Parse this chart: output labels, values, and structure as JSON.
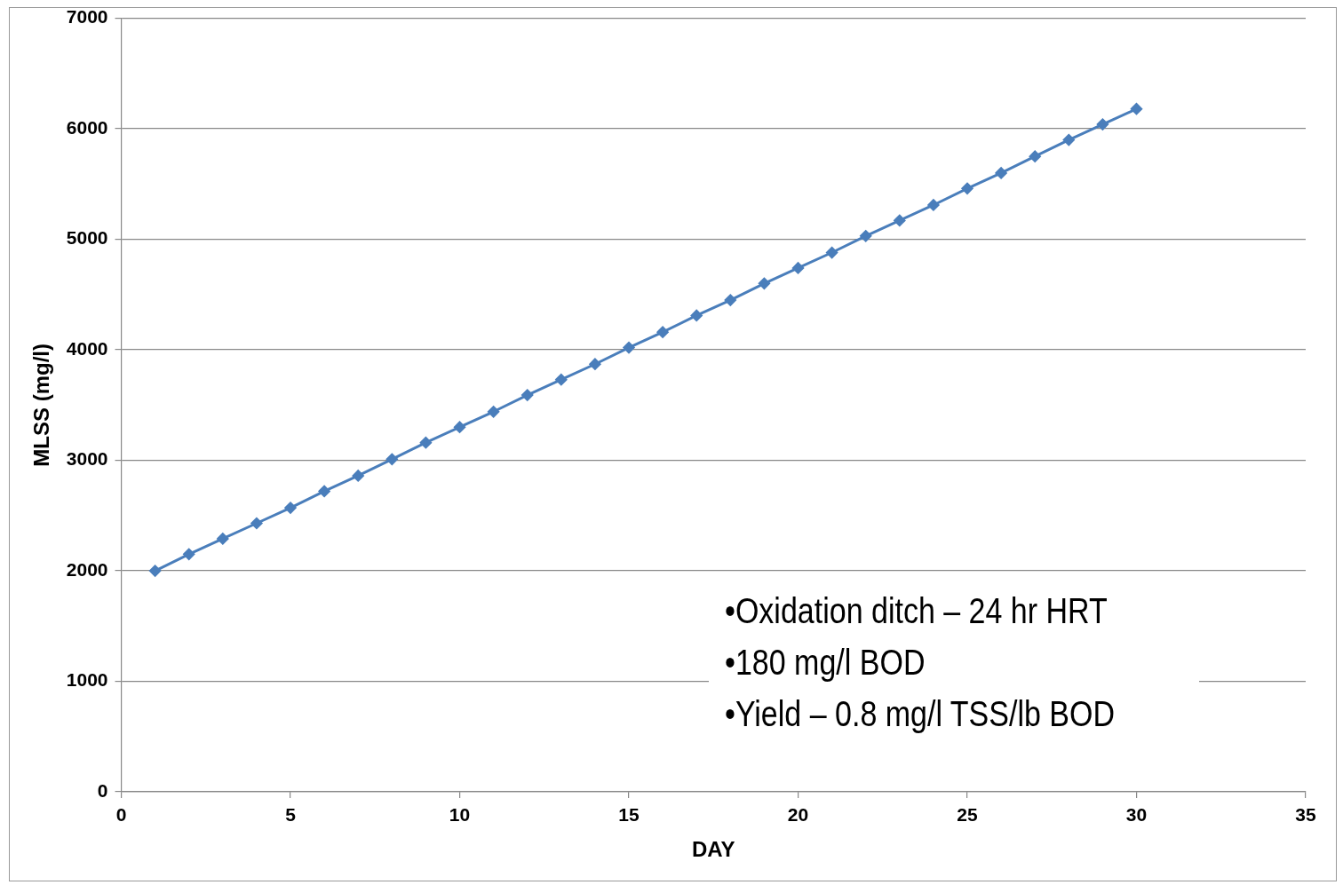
{
  "chart_data": {
    "type": "line",
    "xlabel": "DAY",
    "ylabel": "MLSS (mg/l)",
    "annotations": [
      "•Oxidation ditch – 24 hr  HRT",
      "•180  mg/l BOD",
      "•Yield – 0.8 mg/l TSS/lb BOD"
    ],
    "x": [
      1,
      2,
      3,
      4,
      5,
      6,
      7,
      8,
      9,
      10,
      11,
      12,
      13,
      14,
      15,
      16,
      17,
      18,
      19,
      20,
      21,
      22,
      23,
      24,
      25,
      26,
      27,
      28,
      29,
      30
    ],
    "series": [
      {
        "color": "#4a7ebb",
        "values": [
          2000,
          2150,
          2290,
          2430,
          2570,
          2720,
          2860,
          3010,
          3160,
          3300,
          3440,
          3590,
          3730,
          3870,
          4020,
          4160,
          4310,
          4450,
          4600,
          4740,
          4880,
          5030,
          5170,
          5310,
          5460,
          5600,
          5750,
          5900,
          6040,
          6180
        ]
      }
    ],
    "xlim": [
      0,
      35
    ],
    "xticks": [
      0,
      5,
      10,
      15,
      20,
      25,
      30,
      35
    ],
    "ylim": [
      0,
      7000
    ],
    "yticks": [
      0,
      1000,
      2000,
      3000,
      4000,
      5000,
      6000,
      7000
    ],
    "grid": "y",
    "legend": false,
    "marker": "diamond",
    "line_style": "solid"
  }
}
